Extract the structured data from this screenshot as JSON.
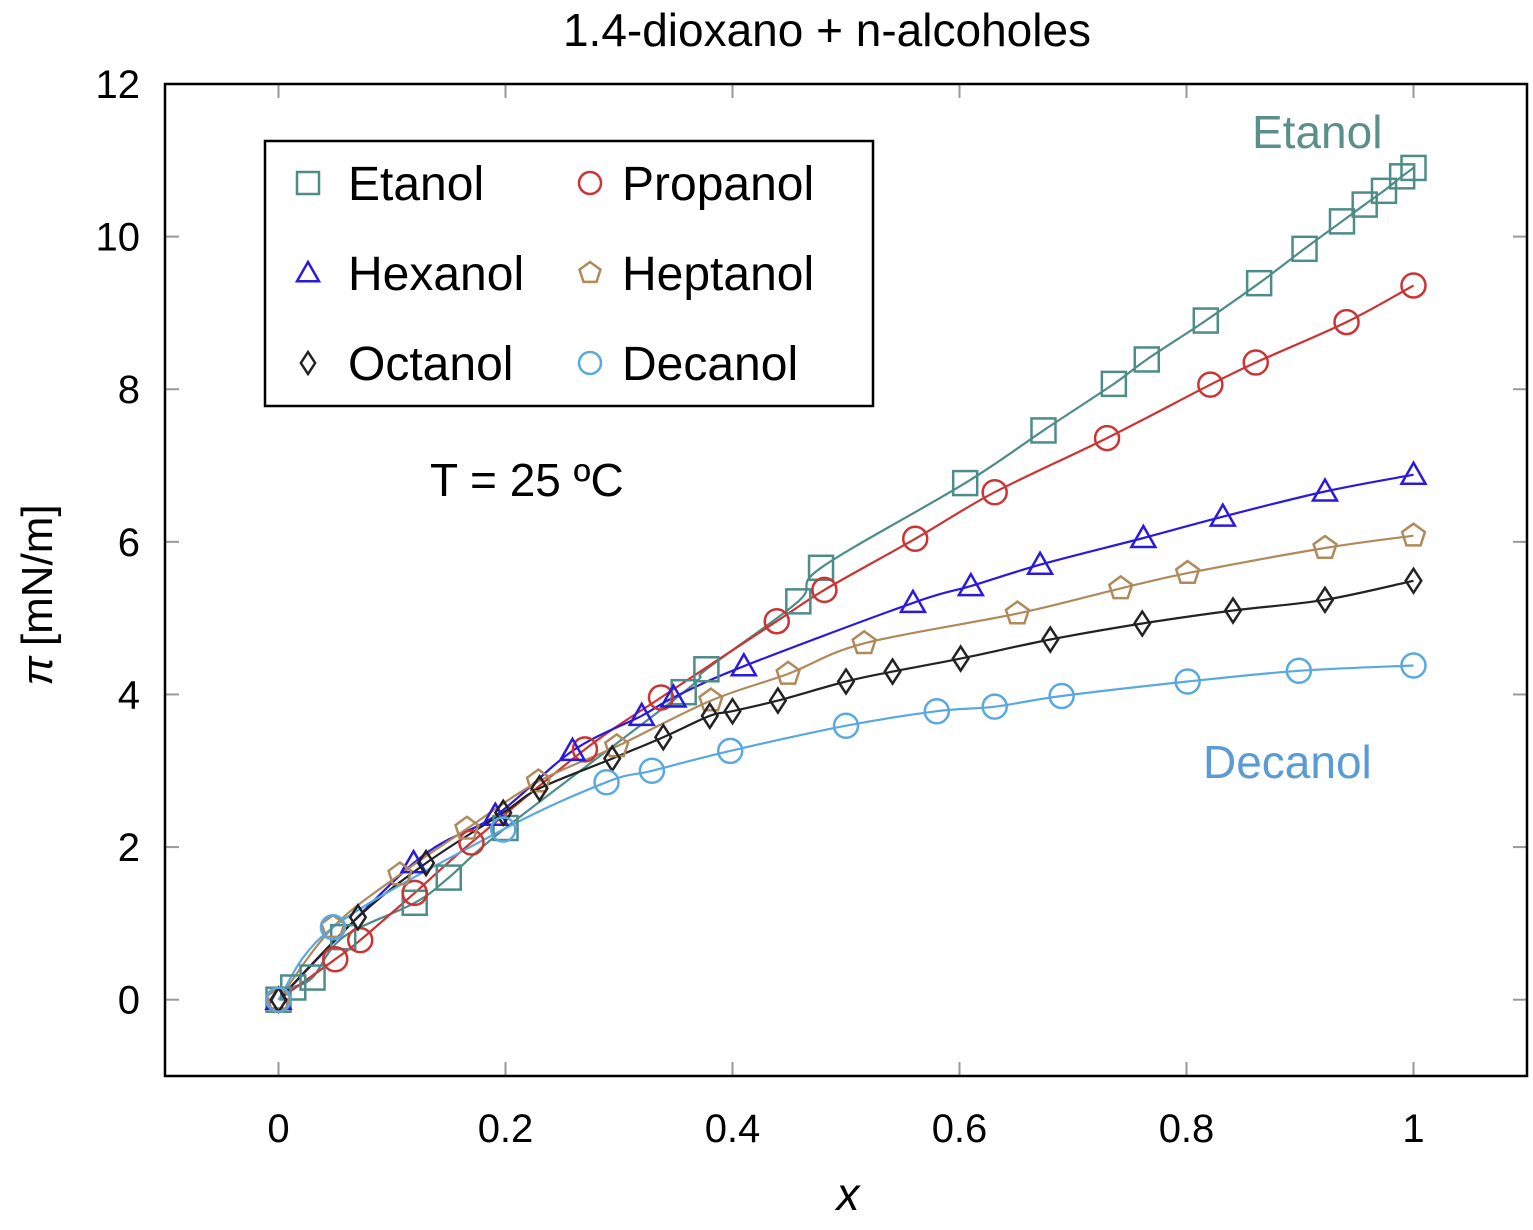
{
  "chart_data": {
    "type": "line",
    "title": "1.4-dioxano + n-alcoholes",
    "xlabel": "x",
    "ylabel_symbol": "π",
    "ylabel_unit": "[mN/m]",
    "xlim": [
      -0.1,
      1.1
    ],
    "ylim": [
      -1,
      12
    ],
    "xticks": [
      0,
      0.2,
      0.4,
      0.6,
      0.8,
      1
    ],
    "xtick_labels": [
      "0",
      "0.2",
      "0.4",
      "0.6",
      "0.8",
      "1"
    ],
    "yticks": [
      0,
      2,
      4,
      6,
      8,
      10,
      12
    ],
    "ytick_labels": [
      "0",
      "2",
      "4",
      "6",
      "8",
      "10",
      "12"
    ],
    "grid": false,
    "legend_position": "top-left",
    "annotations": {
      "temperature": "T = 25 ºC",
      "top_label": "Etanol",
      "bottom_label": "Decanol"
    },
    "series": [
      {
        "name": "Etanol",
        "marker": "square",
        "color": "#4d8c88",
        "x": [
          0,
          0.013,
          0.03,
          0.057,
          0.12,
          0.15,
          0.2,
          0.357,
          0.377,
          0.458,
          0.478,
          0.605,
          0.674,
          0.736,
          0.765,
          0.817,
          0.864,
          0.904,
          0.937,
          0.957,
          0.974,
          0.99,
          1
        ],
        "y": [
          0,
          0.16,
          0.29,
          0.82,
          1.27,
          1.6,
          2.25,
          4.03,
          4.33,
          5.22,
          5.66,
          6.77,
          7.46,
          8.07,
          8.39,
          8.9,
          9.39,
          9.84,
          10.2,
          10.42,
          10.6,
          10.79,
          10.9
        ]
      },
      {
        "name": "Propanol",
        "marker": "circle",
        "color": "#cc3333",
        "x": [
          0,
          0.05,
          0.072,
          0.12,
          0.17,
          0.27,
          0.337,
          0.439,
          0.481,
          0.561,
          0.631,
          0.73,
          0.821,
          0.861,
          0.941,
          1
        ],
        "y": [
          0,
          0.53,
          0.78,
          1.4,
          2.06,
          3.28,
          3.96,
          4.96,
          5.37,
          6.04,
          6.65,
          7.36,
          8.06,
          8.35,
          8.88,
          9.36
        ]
      },
      {
        "name": "Hexanol",
        "marker": "triangle",
        "color": "#2a1adb",
        "x": [
          0,
          0.119,
          0.191,
          0.259,
          0.32,
          0.348,
          0.41,
          0.559,
          0.61,
          0.671,
          0.762,
          0.832,
          0.922,
          1
        ],
        "y": [
          0,
          1.79,
          2.41,
          3.26,
          3.72,
          3.96,
          4.37,
          5.2,
          5.42,
          5.7,
          6.05,
          6.33,
          6.66,
          6.88
        ]
      },
      {
        "name": "Heptanol",
        "marker": "pentagon",
        "color": "#b08a5a",
        "x": [
          0,
          0.048,
          0.107,
          0.166,
          0.229,
          0.298,
          0.381,
          0.449,
          0.516,
          0.651,
          0.742,
          0.801,
          0.922,
          1
        ],
        "y": [
          0,
          0.95,
          1.64,
          2.24,
          2.86,
          3.32,
          3.92,
          4.27,
          4.67,
          5.06,
          5.39,
          5.59,
          5.92,
          6.08
        ]
      },
      {
        "name": "Octanol",
        "marker": "diamond",
        "color": "#222222",
        "x": [
          0,
          0.07,
          0.13,
          0.198,
          0.23,
          0.294,
          0.339,
          0.38,
          0.4,
          0.44,
          0.5,
          0.541,
          0.601,
          0.68,
          0.761,
          0.841,
          0.922,
          1
        ],
        "y": [
          0,
          1.08,
          1.79,
          2.45,
          2.77,
          3.16,
          3.44,
          3.72,
          3.78,
          3.92,
          4.17,
          4.3,
          4.47,
          4.72,
          4.93,
          5.1,
          5.24,
          5.49
        ]
      },
      {
        "name": "Decanol",
        "marker": "circle",
        "color": "#5aa8e0",
        "x": [
          0,
          0.048,
          0.198,
          0.289,
          0.329,
          0.398,
          0.5,
          0.58,
          0.631,
          0.69,
          0.801,
          0.899,
          1
        ],
        "y": [
          0,
          0.95,
          2.23,
          2.85,
          3.0,
          3.26,
          3.59,
          3.78,
          3.84,
          3.98,
          4.17,
          4.31,
          4.38
        ]
      }
    ],
    "label_colors": {
      "top_label": "#5a8f8a",
      "bottom_label": "#5b9bd5"
    }
  }
}
